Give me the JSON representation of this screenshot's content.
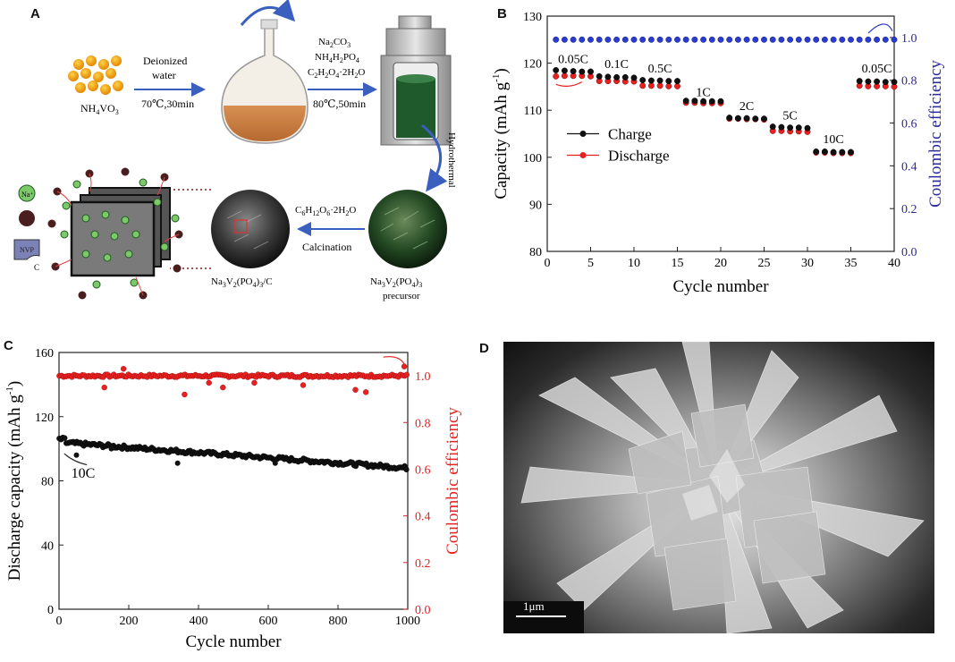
{
  "panels": {
    "a": "A",
    "b": "B",
    "c": "C",
    "d": "D"
  },
  "panel_a": {
    "reagent_start": "NH4VO3",
    "step1_top": "Deionized",
    "step1_mid": "water",
    "step1_cond": "70℃,30min",
    "reagents2": [
      "Na2CO3",
      "NH4H2PO4",
      "C2H2O4·2H2O"
    ],
    "step2_cond": "80℃,50min",
    "hydrothermal": "Hydrothermal",
    "glucose": "C6H12O6·2H2O",
    "calcination": "Calcination",
    "precursor_line1": "Na3V2(PO4)3",
    "precursor_line2": "precursor",
    "product": "Na3V2(PO4)3/C",
    "legend_na": "Na⁺",
    "legend_c": "C",
    "legend_nvp": "NVP"
  },
  "colors": {
    "charge": "#111111",
    "discharge": "#e82020",
    "ce_b": "#2a3bd1",
    "ce_c": "#e82020",
    "axis_right_b": "#2a2a9a",
    "axis_right_c": "#e82020"
  },
  "chart_data": [
    {
      "type": "scatter",
      "panel": "B",
      "xlabel": "Cycle number",
      "ylabel": "Capacity (mAh g⁻¹)",
      "y2label": "Coulombic efficiency",
      "xlim": [
        0,
        40
      ],
      "ylim": [
        80,
        130
      ],
      "y2lim": [
        0.0,
        1.1
      ],
      "xticks": [
        0,
        5,
        10,
        15,
        20,
        25,
        30,
        35,
        40
      ],
      "yticks": [
        80,
        90,
        100,
        110,
        120,
        130
      ],
      "y2ticks": [
        "0.0",
        "0.2",
        "0.4",
        "0.6",
        "0.8",
        "1.0"
      ],
      "legend": [
        "Charge",
        "Discharge"
      ],
      "rate_labels": [
        {
          "text": "0.05C",
          "x": 3,
          "y": 120
        },
        {
          "text": "0.1C",
          "x": 8,
          "y": 119
        },
        {
          "text": "0.5C",
          "x": 13,
          "y": 118
        },
        {
          "text": "1C",
          "x": 18,
          "y": 113
        },
        {
          "text": "2C",
          "x": 23,
          "y": 110
        },
        {
          "text": "5C",
          "x": 28,
          "y": 108
        },
        {
          "text": "10C",
          "x": 33,
          "y": 103
        },
        {
          "text": "0.05C",
          "x": 38,
          "y": 118
        }
      ],
      "series": [
        {
          "name": "Charge",
          "x": [
            1,
            2,
            3,
            4,
            5,
            6,
            7,
            8,
            9,
            10,
            11,
            12,
            13,
            14,
            15,
            16,
            17,
            18,
            19,
            20,
            21,
            22,
            23,
            24,
            25,
            26,
            27,
            28,
            29,
            30,
            31,
            32,
            33,
            34,
            35,
            36,
            37,
            38,
            39,
            40
          ],
          "values": [
            118.5,
            118.4,
            118.3,
            118.2,
            118.2,
            117.2,
            117.1,
            117.0,
            117.0,
            116.9,
            116.4,
            116.3,
            116.3,
            116.2,
            116.2,
            112.0,
            112.0,
            111.9,
            111.9,
            111.9,
            108.4,
            108.3,
            108.3,
            108.2,
            108.2,
            106.5,
            106.4,
            106.3,
            106.3,
            106.2,
            101.2,
            101.2,
            101.1,
            101.1,
            101.1,
            116.2,
            116.1,
            116.1,
            116.0,
            116.0
          ]
        },
        {
          "name": "Discharge",
          "x": [
            1,
            2,
            3,
            4,
            5,
            6,
            7,
            8,
            9,
            10,
            11,
            12,
            13,
            14,
            15,
            16,
            17,
            18,
            19,
            20,
            21,
            22,
            23,
            24,
            25,
            26,
            27,
            28,
            29,
            30,
            31,
            32,
            33,
            34,
            35,
            36,
            37,
            38,
            39,
            40
          ],
          "values": [
            117.2,
            117.3,
            117.3,
            117.3,
            117.2,
            116.2,
            116.2,
            116.2,
            116.1,
            116.1,
            115.2,
            115.2,
            115.2,
            115.1,
            115.1,
            111.6,
            111.6,
            111.5,
            111.5,
            111.5,
            108.2,
            108.2,
            108.1,
            108.1,
            108.0,
            105.6,
            105.6,
            105.5,
            105.5,
            105.4,
            101.0,
            101.0,
            100.9,
            100.9,
            100.9,
            115.2,
            115.1,
            115.1,
            115.1,
            115.0
          ]
        },
        {
          "name": "Coulombic efficiency",
          "axis": "right",
          "x": [
            1,
            2,
            3,
            4,
            5,
            6,
            7,
            8,
            9,
            10,
            11,
            12,
            13,
            14,
            15,
            16,
            17,
            18,
            19,
            20,
            21,
            22,
            23,
            24,
            25,
            26,
            27,
            28,
            29,
            30,
            31,
            32,
            33,
            34,
            35,
            36,
            37,
            38,
            39,
            40
          ],
          "values": [
            0.99,
            0.99,
            0.99,
            0.99,
            0.99,
            0.99,
            0.99,
            0.99,
            0.99,
            0.99,
            0.99,
            0.99,
            0.99,
            0.99,
            0.99,
            0.99,
            0.99,
            0.99,
            0.99,
            0.99,
            0.99,
            0.99,
            0.99,
            0.99,
            0.99,
            0.99,
            0.99,
            0.99,
            0.99,
            0.99,
            0.99,
            0.99,
            0.99,
            0.99,
            0.99,
            0.99,
            0.99,
            0.99,
            0.99,
            0.99
          ]
        }
      ]
    },
    {
      "type": "scatter",
      "panel": "C",
      "xlabel": "Cycle number",
      "ylabel": "Discharge capacity (mAh g⁻¹)",
      "y2label": "Coulombic efficiency",
      "xlim": [
        0,
        1000
      ],
      "ylim": [
        0,
        160
      ],
      "y2lim": [
        0.0,
        1.1
      ],
      "xticks": [
        0,
        200,
        400,
        600,
        800,
        1000
      ],
      "yticks": [
        0,
        40,
        80,
        120,
        160
      ],
      "y2ticks": [
        "0.0",
        "0.2",
        "0.4",
        "0.6",
        "0.8",
        "1.0"
      ],
      "annotation": "10C",
      "series": [
        {
          "name": "Discharge capacity",
          "start": 104,
          "end": 88,
          "outliers": [
            [
              340,
              91
            ],
            [
              620,
              91
            ],
            [
              50,
              96
            ],
            [
              150,
              100
            ]
          ]
        },
        {
          "name": "Coulombic efficiency",
          "axis": "right",
          "level": 1.0,
          "outliers": [
            [
              130,
              0.95
            ],
            [
              185,
              1.03
            ],
            [
              360,
              0.92
            ],
            [
              430,
              0.97
            ],
            [
              470,
              0.95
            ],
            [
              560,
              0.97
            ],
            [
              700,
              0.96
            ],
            [
              850,
              0.94
            ],
            [
              880,
              0.93
            ],
            [
              990,
              1.04
            ]
          ]
        }
      ]
    }
  ],
  "panel_c": {
    "ylabel_main": "Discharge capacity (mAh g",
    "ylabel_sup": "-1",
    "ylabel_end": ")"
  },
  "panel_b": {
    "ylabel_main": "Capacity (mAh g",
    "ylabel_sup": "-1",
    "ylabel_end": ")"
  },
  "panel_d": {
    "scale_bar": "1μm"
  }
}
